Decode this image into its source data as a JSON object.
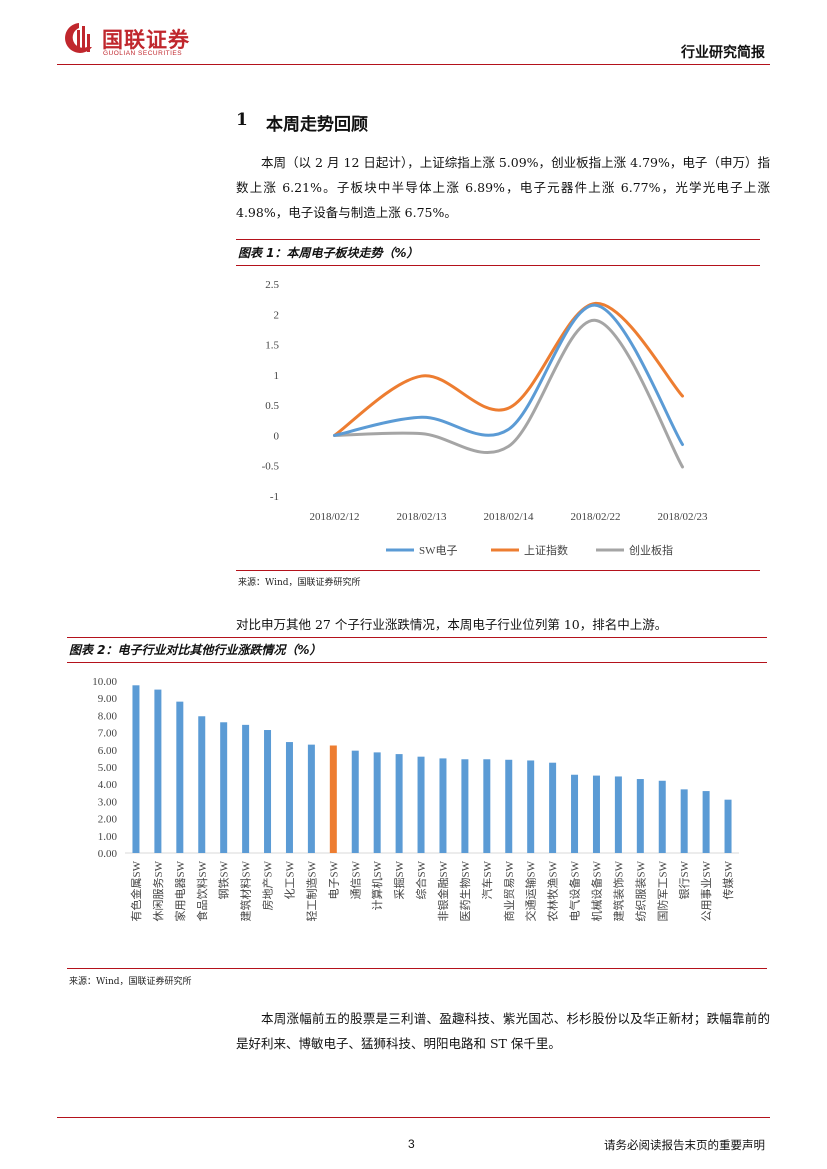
{
  "header": {
    "logo_cn": "国联证券",
    "logo_en": "GUOLIAN SECURITIES",
    "report_type": "行业研究简报"
  },
  "section": {
    "number": "1",
    "title": "本周走势回顾"
  },
  "paragraphs": {
    "p1": "本周（以 2 月 12 日起计），上证综指上涨 5.09%，创业板指上涨 4.79%，电子（申万）指数上涨 6.21%。子板块中半导体上涨 6.89%，电子元器件上涨 6.77%，光学光电子上涨 4.98%，电子设备与制造上涨 6.75%。",
    "p2": "对比申万其他 27 个子行业涨跌情况，本周电子行业位列第 10，排名中上游。",
    "p3": "本周涨幅前五的股票是三利谱、盈趣科技、紫光国芯、杉杉股份以及华正新材；跌幅靠前的是好利来、博敏电子、猛狮科技、明阳电路和 ST 保千里。"
  },
  "figure1": {
    "title": "图表 1：本周电子板块走势（%）",
    "source": "来源：Wind，国联证券研究所"
  },
  "figure2": {
    "title": "图表 2：电子行业对比其他行业涨跌情况（%）",
    "source": "来源：Wind，国联证券研究所"
  },
  "chart_data": [
    {
      "type": "line",
      "title": "本周电子板块走势（%）",
      "categories": [
        "2018/02/12",
        "2018/02/13",
        "2018/02/14",
        "2018/02/22",
        "2018/02/23"
      ],
      "ylim": [
        -1,
        2.5
      ],
      "yticks": [
        "2.5",
        "2",
        "1.5",
        "1",
        "0.5",
        "0",
        "-0.5",
        "-1"
      ],
      "series": [
        {
          "name": "SW电子",
          "color": "#5b9bd5",
          "values": [
            0,
            0.3,
            0.1,
            2.15,
            -0.15
          ]
        },
        {
          "name": "上证指数",
          "color": "#ed7d31",
          "values": [
            0,
            0.98,
            0.45,
            2.18,
            0.65
          ]
        },
        {
          "name": "创业板指",
          "color": "#a5a5a5",
          "values": [
            0,
            0.03,
            -0.18,
            1.9,
            -0.52
          ]
        }
      ],
      "legend": "bottom"
    },
    {
      "type": "bar",
      "title": "电子行业对比其他行业涨跌情况（%）",
      "ylim": [
        0,
        10
      ],
      "yticks": [
        "10.00",
        "9.00",
        "8.00",
        "7.00",
        "6.00",
        "5.00",
        "4.00",
        "3.00",
        "2.00",
        "1.00",
        "0.00"
      ],
      "bar_color": "#5b9bd5",
      "highlight_color": "#ed7d31",
      "highlight": "电子SW",
      "categories": [
        "有色金属SW",
        "休闲服务SW",
        "家用电器SW",
        "食品饮料SW",
        "钢铁SW",
        "建筑材料SW",
        "房地产SW",
        "化工SW",
        "轻工制造SW",
        "电子SW",
        "通信SW",
        "计算机SW",
        "采掘SW",
        "综合SW",
        "非银金融SW",
        "医药生物SW",
        "汽车SW",
        "商业贸易SW",
        "交通运输SW",
        "农林牧渔SW",
        "电气设备SW",
        "机械设备SW",
        "建筑装饰SW",
        "纺织服装SW",
        "国防军工SW",
        "银行SW",
        "公用事业SW",
        "传媒SW"
      ],
      "values": [
        9.75,
        9.5,
        8.8,
        7.95,
        7.6,
        7.45,
        7.15,
        6.45,
        6.3,
        6.25,
        5.95,
        5.85,
        5.75,
        5.6,
        5.5,
        5.45,
        5.45,
        5.42,
        5.38,
        5.25,
        4.55,
        4.5,
        4.45,
        4.3,
        4.2,
        3.7,
        3.6,
        3.1
      ]
    }
  ],
  "footer": {
    "page_number": "3",
    "disclaimer": "请务必阅读报告末页的重要声明"
  }
}
